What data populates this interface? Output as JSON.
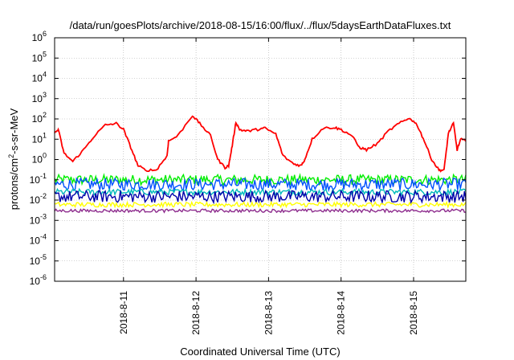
{
  "chart_data": {
    "type": "line",
    "title": "/data/run/goesPlots/archive/2018-08-15/16:00/flux/../flux/5daysEarthDataFluxes.txt",
    "xlabel": "Coordinated Universal Time (UTC)",
    "ylabel": {
      "prefix": "protons/cm",
      "sup": "2",
      "suffix": "-s-sr-MeV"
    },
    "y_scale": "log",
    "ylim": [
      1e-06,
      1000000.0
    ],
    "y_ticks": [
      {
        "base": "10",
        "exp": "-6",
        "value": -6
      },
      {
        "base": "10",
        "exp": "-5",
        "value": -5
      },
      {
        "base": "10",
        "exp": "-4",
        "value": -4
      },
      {
        "base": "10",
        "exp": "-3",
        "value": -3
      },
      {
        "base": "10",
        "exp": "-2",
        "value": -2
      },
      {
        "base": "10",
        "exp": "-1",
        "value": -1
      },
      {
        "base": "10",
        "exp": "0",
        "value": 0
      },
      {
        "base": "10",
        "exp": "1",
        "value": 1
      },
      {
        "base": "10",
        "exp": "2",
        "value": 2
      },
      {
        "base": "10",
        "exp": "3",
        "value": 3
      },
      {
        "base": "10",
        "exp": "4",
        "value": 4
      },
      {
        "base": "10",
        "exp": "5",
        "value": 5
      },
      {
        "base": "10",
        "exp": "6",
        "value": 6
      }
    ],
    "x_range_days": [
      10.05,
      15.72
    ],
    "x_ticks": [
      {
        "label": "2018-8-11",
        "day": 11
      },
      {
        "label": "2018-8-12",
        "day": 12
      },
      {
        "label": "2018-8-13",
        "day": 13
      },
      {
        "label": "2018-8-14",
        "day": 14
      },
      {
        "label": "2018-8-15",
        "day": 15
      }
    ],
    "grid": true,
    "series": [
      {
        "color": "#ff0000",
        "points": [
          [
            10.05,
            20
          ],
          [
            10.1,
            30
          ],
          [
            10.18,
            2
          ],
          [
            10.3,
            0.8
          ],
          [
            10.45,
            3
          ],
          [
            10.6,
            15
          ],
          [
            10.75,
            50
          ],
          [
            10.9,
            60
          ],
          [
            11.0,
            30
          ],
          [
            11.1,
            4
          ],
          [
            11.2,
            0.5
          ],
          [
            11.3,
            0.3
          ],
          [
            11.45,
            0.3
          ],
          [
            11.6,
            1.5
          ],
          [
            11.62,
            8
          ],
          [
            11.75,
            15
          ],
          [
            11.95,
            150
          ],
          [
            12.05,
            60
          ],
          [
            12.2,
            15
          ],
          [
            12.3,
            1
          ],
          [
            12.4,
            0.4
          ],
          [
            12.45,
            0.5
          ],
          [
            12.5,
            5
          ],
          [
            12.55,
            70
          ],
          [
            12.6,
            30
          ],
          [
            12.7,
            25
          ],
          [
            12.85,
            30
          ],
          [
            12.95,
            35
          ],
          [
            13.1,
            18
          ],
          [
            13.2,
            1.5
          ],
          [
            13.35,
            0.6
          ],
          [
            13.45,
            0.5
          ],
          [
            13.5,
            1
          ],
          [
            13.6,
            10
          ],
          [
            13.75,
            35
          ],
          [
            13.9,
            38
          ],
          [
            14.0,
            30
          ],
          [
            14.15,
            15
          ],
          [
            14.25,
            4
          ],
          [
            14.35,
            3
          ],
          [
            14.5,
            6
          ],
          [
            14.65,
            25
          ],
          [
            14.8,
            60
          ],
          [
            14.95,
            110
          ],
          [
            15.05,
            50
          ],
          [
            15.15,
            8
          ],
          [
            15.25,
            1
          ],
          [
            15.35,
            0.3
          ],
          [
            15.42,
            0.3
          ],
          [
            15.48,
            20
          ],
          [
            15.55,
            60
          ],
          [
            15.6,
            3
          ],
          [
            15.65,
            10
          ],
          [
            15.72,
            8
          ]
        ]
      },
      {
        "color": "#00ee00",
        "level": 0.1,
        "spread": 0.25
      },
      {
        "color": "#0050ff",
        "level": 0.06,
        "spread": 0.3
      },
      {
        "color": "#00bbbb",
        "level": 0.025,
        "spread": 0.15
      },
      {
        "color": "#0000aa",
        "level": 0.015,
        "spread": 0.3
      },
      {
        "color": "#ffff00",
        "level": 0.006,
        "spread": 0.12
      },
      {
        "color": "#8e2d8e",
        "level": 0.003,
        "spread": 0.08
      }
    ]
  }
}
